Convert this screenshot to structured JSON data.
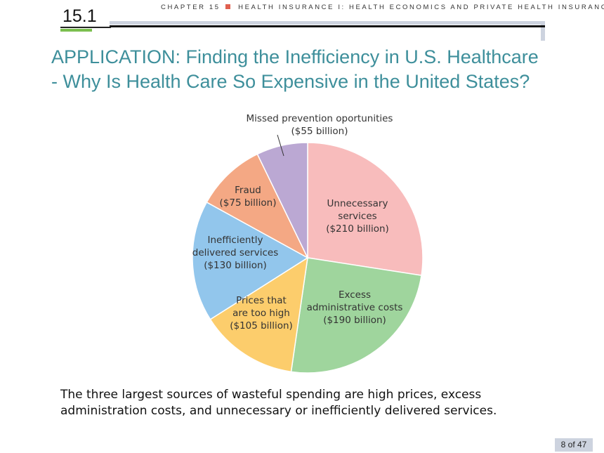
{
  "header": {
    "chapter": "CHAPTER 15",
    "subtitle": "HEALTH INSURANCE I: HEALTH ECONOMICS AND PRIVATE HEALTH INSURANCE",
    "section_number": "15.1",
    "accent_color": "#e06050"
  },
  "title": "APPLICATION: Finding the Inefficiency in U.S. Healthcare - Why Is Health Care So Expensive in the United States?",
  "caption": "The three largest sources of wasteful spending are high prices, excess administration costs, and unnecessary or inefficiently delivered services.",
  "page_indicator": "8 of 47",
  "chart_data": {
    "type": "pie",
    "title": "",
    "units": "billion $",
    "slices": [
      {
        "label_lines": [
          "Unnecessary",
          "services",
          "($210 billion)"
        ],
        "value": 210,
        "color": "#f8bcbc"
      },
      {
        "label_lines": [
          "Excess",
          "administrative costs",
          "($190 billion)"
        ],
        "value": 190,
        "color": "#9fd59d"
      },
      {
        "label_lines": [
          "Prices that",
          "are too high",
          "($105 billion)"
        ],
        "value": 105,
        "color": "#fccd6c"
      },
      {
        "label_lines": [
          "Inefficiently",
          "delivered services",
          "($130 billion)"
        ],
        "value": 130,
        "color": "#92c6ec"
      },
      {
        "label_lines": [
          "Fraud",
          "($75 billion)"
        ],
        "value": 75,
        "color": "#f4a884"
      },
      {
        "label_lines": [
          "Missed prevention oportunities",
          "($55 billion)"
        ],
        "value": 55,
        "color": "#bba8d3"
      }
    ]
  }
}
